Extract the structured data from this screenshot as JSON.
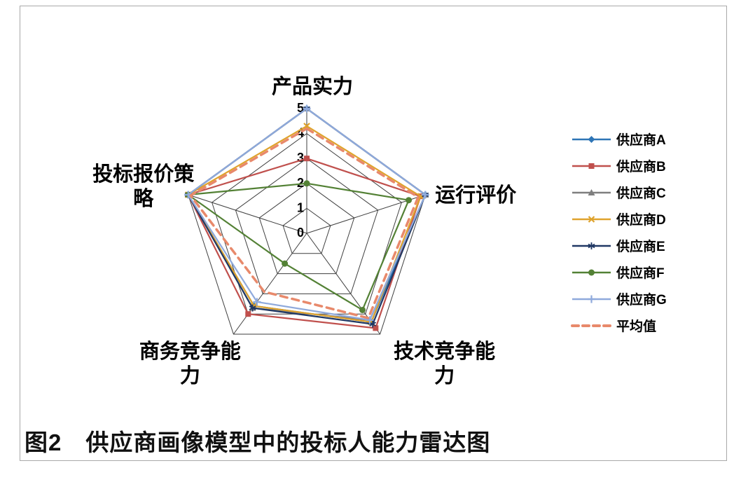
{
  "figure": {
    "caption": "图2　供应商画像模型中的投标人能力雷达图"
  },
  "chart_data": {
    "type": "radar",
    "title": "",
    "categories": [
      "产品实力",
      "运行评价",
      "技术竞争能力",
      "商务竞争能力",
      "投标报价策略"
    ],
    "axis_range": [
      0,
      5
    ],
    "axis_ticks": [
      "0",
      "1",
      "2",
      "3",
      "4",
      "5"
    ],
    "grid": true,
    "legend_position": "right",
    "series": [
      {
        "name": "供应商A",
        "color": "#2E75B6",
        "marker": "diamond",
        "dashed": false,
        "values": [
          5,
          5,
          4.4,
          3.6,
          5
        ]
      },
      {
        "name": "供应商B",
        "color": "#C0504D",
        "marker": "square",
        "dashed": false,
        "values": [
          3,
          4.8,
          4.7,
          4.0,
          5
        ]
      },
      {
        "name": "供应商C",
        "color": "#7F7F7F",
        "marker": "triangle",
        "dashed": false,
        "values": [
          5,
          5,
          4.3,
          3.7,
          5
        ]
      },
      {
        "name": "供应商D",
        "color": "#DFA32D",
        "marker": "x",
        "dashed": false,
        "values": [
          4.3,
          4.8,
          4.4,
          3.6,
          5
        ]
      },
      {
        "name": "供应商E",
        "color": "#203864",
        "marker": "asterisk",
        "dashed": false,
        "values": [
          5,
          5,
          4.5,
          3.7,
          5
        ]
      },
      {
        "name": "供应商F",
        "color": "#538135",
        "marker": "circle",
        "dashed": false,
        "values": [
          2,
          4.3,
          3.8,
          1.5,
          5
        ]
      },
      {
        "name": "供应商G",
        "color": "#8FAADC",
        "marker": "plus",
        "dashed": false,
        "values": [
          5,
          5,
          4.3,
          3.4,
          5
        ]
      },
      {
        "name": "平均值",
        "color": "#E8896B",
        "marker": "none",
        "dashed": true,
        "values": [
          4.2,
          4.7,
          4.2,
          2.9,
          4.9
        ]
      }
    ],
    "style": {
      "grid_color": "#3f3f3f",
      "tick_font_size": 18,
      "axis_label_font_size": 29,
      "legend_font_size": 19
    }
  }
}
